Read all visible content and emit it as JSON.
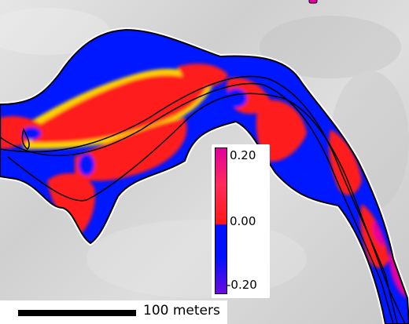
{
  "colorbar": {
    "ticks": [
      "0.20",
      "0.00",
      "-0.20"
    ],
    "range": [
      -0.2,
      0.2
    ],
    "colors": {
      "high": "#e3009e",
      "positive": "#ff1a1a",
      "zero_transition": "#ffd400",
      "negative": "#0010ff",
      "low": "#6a0cdb"
    }
  },
  "scalebar": {
    "label": "100 meters"
  },
  "background": "grey shaded relief"
}
